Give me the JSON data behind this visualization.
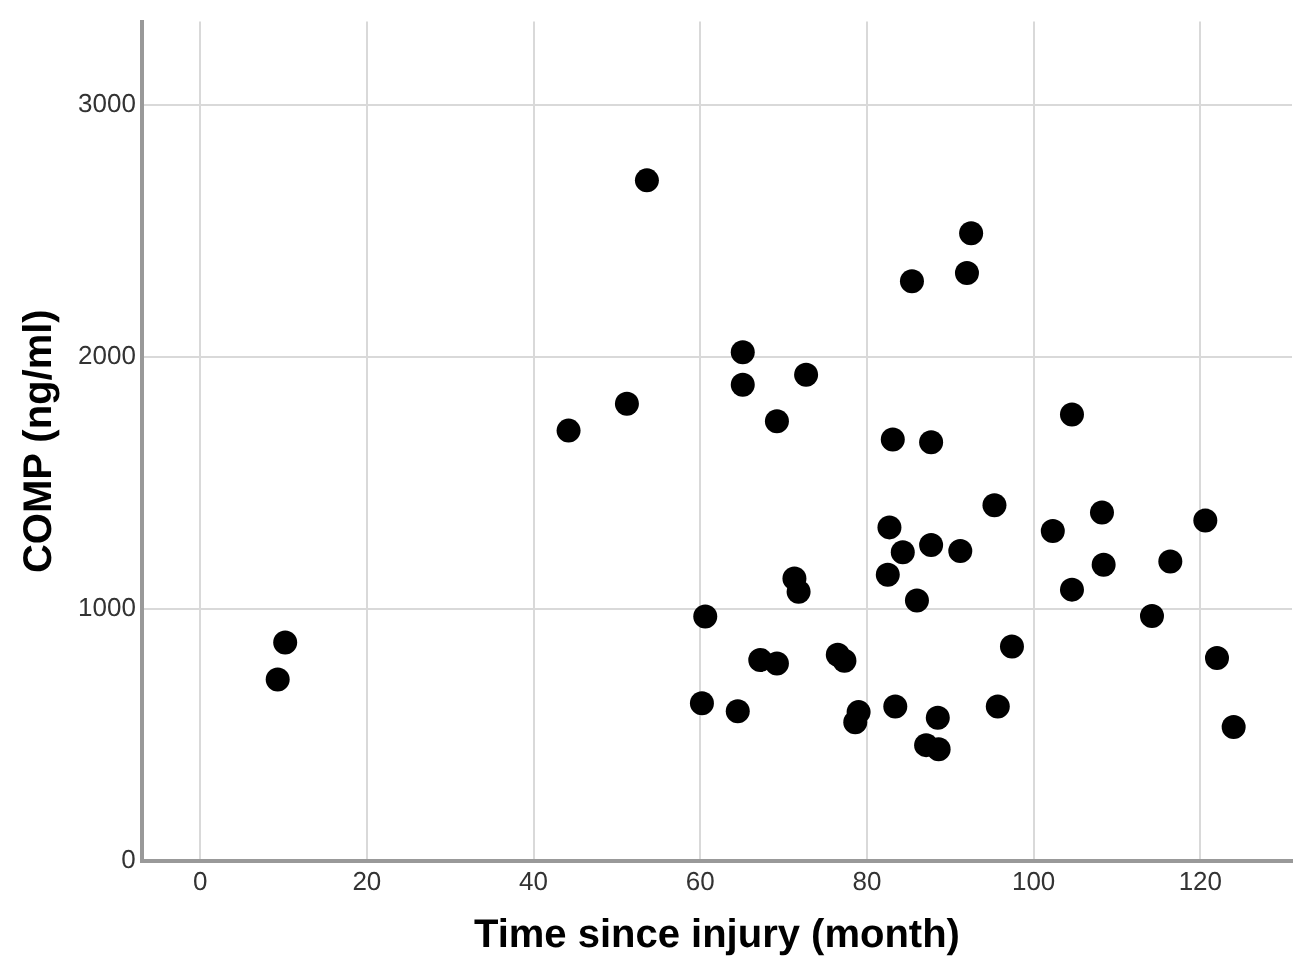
{
  "chart_data": {
    "type": "scatter",
    "xlabel": "Time since injury (month)",
    "ylabel": "COMP (ng/ml)",
    "xlim": [
      -7,
      131
    ],
    "ylim": [
      0,
      3330
    ],
    "xticks": [
      0,
      20,
      40,
      60,
      80,
      100,
      120
    ],
    "yticks": [
      0,
      1000,
      2000,
      3000
    ],
    "grid": true,
    "legend": false,
    "marker": "circle",
    "series": [
      {
        "color": "#000000",
        "x": [
          10.2,
          9.3,
          53.6,
          51.2,
          44.2,
          92.5,
          85.4,
          92.0,
          65.1,
          65.1,
          72.7,
          69.2,
          83.1,
          87.7,
          104.6,
          95.3,
          82.7,
          84.3,
          87.7,
          91.2,
          82.5,
          86.0,
          71.3,
          71.8,
          60.6,
          102.3,
          108.2,
          104.6,
          108.4,
          116.4,
          120.6,
          114.2,
          122.0,
          124.0,
          97.4,
          95.7,
          67.2,
          69.2,
          76.5,
          77.3,
          60.2,
          64.5,
          79.0,
          78.6,
          83.4,
          88.5,
          87.1,
          88.6
        ],
        "values": [
          866,
          719,
          2700,
          1814,
          1707,
          2490,
          2300,
          2332,
          2018,
          1889,
          1929,
          1744,
          1672,
          1661,
          1771,
          1411,
          1323,
          1224,
          1253,
          1229,
          1135,
          1033,
          1120,
          1068,
          969,
          1309,
          1382,
          1076,
          1175,
          1188,
          1350,
          971,
          805,
          531,
          850,
          612,
          797,
          783,
          818,
          794,
          625,
          593,
          590,
          550,
          612,
          568,
          459,
          443
        ]
      }
    ]
  }
}
